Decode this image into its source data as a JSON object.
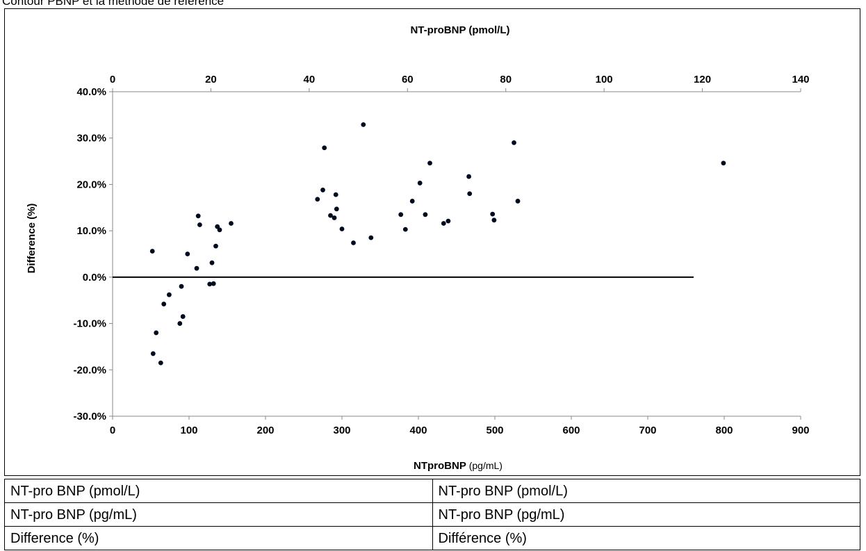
{
  "document": {
    "heading": "Contour PBNP et la méthode de référence"
  },
  "chart_data": {
    "type": "scatter",
    "top_axis_title": "NT-proBNP (pmol/L)",
    "top_ticks": [
      0,
      20,
      40,
      60,
      80,
      100,
      120,
      140
    ],
    "top_xlim": [
      0,
      140
    ],
    "x_title_bold": "NTproBNP",
    "x_title_unit": " (pg/mL)",
    "xlim": [
      0,
      900
    ],
    "x_ticks": [
      0,
      100,
      200,
      300,
      400,
      500,
      600,
      700,
      800,
      900
    ],
    "ylabel": "Difference (%)",
    "ylim": [
      -30,
      40
    ],
    "y_ticks": [
      {
        "value": -30,
        "label": "-30.0%"
      },
      {
        "value": -20,
        "label": "-20.0%"
      },
      {
        "value": -10,
        "label": "-10.0%"
      },
      {
        "value": 0,
        "label": "0.0%"
      },
      {
        "value": 10,
        "label": "10.0%"
      },
      {
        "value": 20,
        "label": "20.0%"
      },
      {
        "value": 30,
        "label": "30.0%"
      },
      {
        "value": 40,
        "label": "40.0%"
      }
    ],
    "reference_line": {
      "y": 0,
      "x_start": 0,
      "x_end": 760
    },
    "grid": false,
    "legend": "none",
    "marker_color": "#000a1e",
    "points": [
      {
        "x": 52,
        "y": 5.6
      },
      {
        "x": 53,
        "y": -16.5
      },
      {
        "x": 57,
        "y": -12.0
      },
      {
        "x": 63,
        "y": -18.5
      },
      {
        "x": 67,
        "y": -5.8
      },
      {
        "x": 74,
        "y": -3.8
      },
      {
        "x": 88,
        "y": -10.0
      },
      {
        "x": 90,
        "y": -2.0
      },
      {
        "x": 92,
        "y": -8.5
      },
      {
        "x": 98,
        "y": 5.0
      },
      {
        "x": 110,
        "y": 1.9
      },
      {
        "x": 112,
        "y": 13.2
      },
      {
        "x": 114,
        "y": 11.3
      },
      {
        "x": 127,
        "y": -1.5
      },
      {
        "x": 130,
        "y": 3.1
      },
      {
        "x": 132,
        "y": -1.4
      },
      {
        "x": 135,
        "y": 6.7
      },
      {
        "x": 137,
        "y": 10.9
      },
      {
        "x": 140,
        "y": 10.2
      },
      {
        "x": 155,
        "y": 11.6
      },
      {
        "x": 268,
        "y": 16.8
      },
      {
        "x": 275,
        "y": 18.8
      },
      {
        "x": 277,
        "y": 27.9
      },
      {
        "x": 285,
        "y": 13.3
      },
      {
        "x": 290,
        "y": 12.8
      },
      {
        "x": 292,
        "y": 17.8
      },
      {
        "x": 293,
        "y": 14.7
      },
      {
        "x": 300,
        "y": 10.4
      },
      {
        "x": 315,
        "y": 7.4
      },
      {
        "x": 328,
        "y": 32.9
      },
      {
        "x": 338,
        "y": 8.5
      },
      {
        "x": 377,
        "y": 13.5
      },
      {
        "x": 383,
        "y": 10.3
      },
      {
        "x": 392,
        "y": 16.4
      },
      {
        "x": 402,
        "y": 20.3
      },
      {
        "x": 409,
        "y": 13.5
      },
      {
        "x": 415,
        "y": 24.6
      },
      {
        "x": 433,
        "y": 11.6
      },
      {
        "x": 439,
        "y": 12.1
      },
      {
        "x": 466,
        "y": 21.7
      },
      {
        "x": 467,
        "y": 18.0
      },
      {
        "x": 497,
        "y": 13.6
      },
      {
        "x": 499,
        "y": 12.3
      },
      {
        "x": 525,
        "y": 29.0
      },
      {
        "x": 530,
        "y": 16.4
      },
      {
        "x": 799,
        "y": 24.6
      }
    ]
  },
  "glossary": [
    [
      "NT-pro BNP (pmol/L)",
      "NT-pro BNP (pmol/L)"
    ],
    [
      "NT-pro BNP (pg/mL)",
      "NT-pro BNP (pg/mL)"
    ],
    [
      "Difference (%)",
      "Différence (%)"
    ]
  ]
}
